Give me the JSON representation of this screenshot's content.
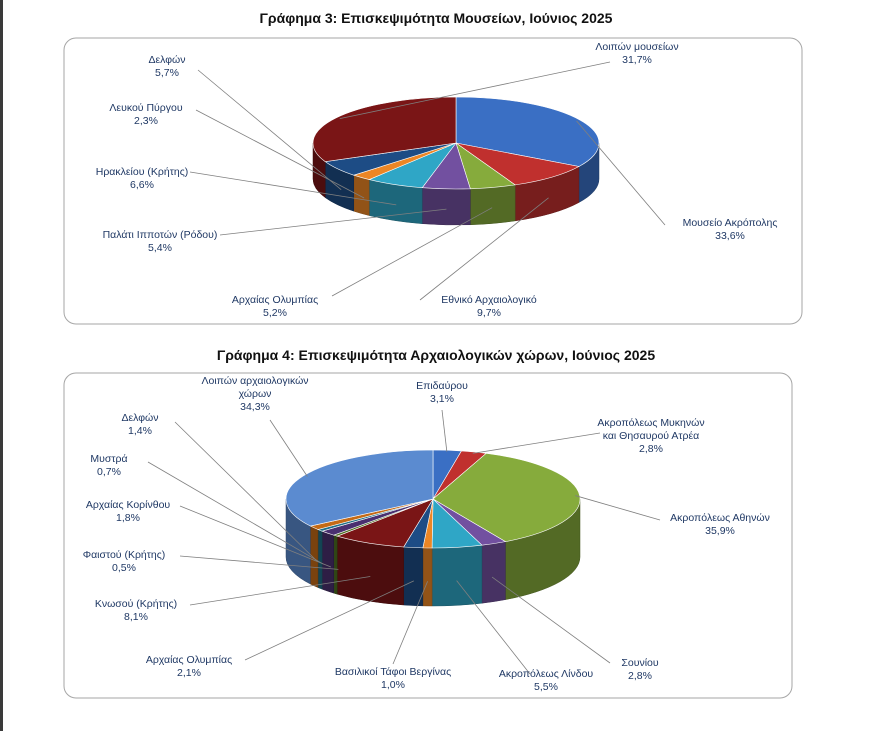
{
  "chart_data": [
    {
      "type": "pie",
      "title": "Γράφημα 3: Επισκεψιμότητα Μουσείων, Ιούνιος 2025",
      "slices": [
        {
          "name": "Μουσείο Ακρόπολης",
          "value": "33,6%",
          "v": 33.6,
          "color": "#3a6fc4"
        },
        {
          "name": "Εθνικό Αρχαιολογικό",
          "value": "9,7%",
          "v": 9.7,
          "color": "#c0302e"
        },
        {
          "name": "Αρχαίας Ολυμπίας",
          "value": "5,2%",
          "v": 5.2,
          "color": "#86ab3c"
        },
        {
          "name": "Παλάτι Ιπποτών (Ρόδου)",
          "value": "5,4%",
          "v": 5.4,
          "color": "#7250a0"
        },
        {
          "name": "Ηρακλείου (Κρήτης)",
          "value": "6,6%",
          "v": 6.6,
          "color": "#2fa6c6"
        },
        {
          "name": "Λευκού Πύργου",
          "value": "2,3%",
          "v": 2.3,
          "color": "#ec8625"
        },
        {
          "name": "Δελφών",
          "value": "5,7%",
          "v": 5.7,
          "color": "#1d4c85"
        },
        {
          "name": "Λοιπών μουσείων",
          "value": "31,7%",
          "v": 31.7,
          "color": "#7a1516"
        }
      ]
    },
    {
      "type": "pie",
      "title": "Γράφημα 4: Επισκεψιμότητα Αρχαιολογικών χώρων, Ιούνιος 2025",
      "slices": [
        {
          "name": "Επιδαύρου",
          "value": "3,1%",
          "v": 3.1,
          "color": "#3a6fc4"
        },
        {
          "name": "Ακροπόλεως Μυκηνών και Θησαυρού Ατρέα",
          "value": "2,8%",
          "v": 2.8,
          "color": "#c0302e"
        },
        {
          "name": "Ακροπόλεως Αθηνών",
          "value": "35,9%",
          "v": 35.9,
          "color": "#86ab3c"
        },
        {
          "name": "Σουνίου",
          "value": "2,8%",
          "v": 2.8,
          "color": "#7250a0"
        },
        {
          "name": "Ακροπόλεως Λίνδου",
          "value": "5,5%",
          "v": 5.5,
          "color": "#2fa6c6"
        },
        {
          "name": "Βασιλικοί Τάφοι Βεργίνας",
          "value": "1,0%",
          "v": 1.0,
          "color": "#ec8625"
        },
        {
          "name": "Αρχαίας Ολυμπίας",
          "value": "2,1%",
          "v": 2.1,
          "color": "#1d4c85"
        },
        {
          "name": "Κνωσού (Κρήτης)",
          "value": "8,1%",
          "v": 8.1,
          "color": "#7a1516"
        },
        {
          "name": "Φαιστού (Κρήτης)",
          "value": "0,5%",
          "v": 0.5,
          "color": "#4e6f22"
        },
        {
          "name": "Αρχαίας Κορίνθου",
          "value": "1,8%",
          "v": 1.8,
          "color": "#4a3070"
        },
        {
          "name": "Μυστρά",
          "value": "0,7%",
          "v": 0.7,
          "color": "#1f6f88"
        },
        {
          "name": "Δελφών",
          "value": "1,4%",
          "v": 1.4,
          "color": "#c46a16"
        },
        {
          "name": "Λοιπών αρχαιολογικών χώρων",
          "value": "34,3%",
          "v": 34.3,
          "color": "#5b8bd0"
        }
      ]
    }
  ]
}
